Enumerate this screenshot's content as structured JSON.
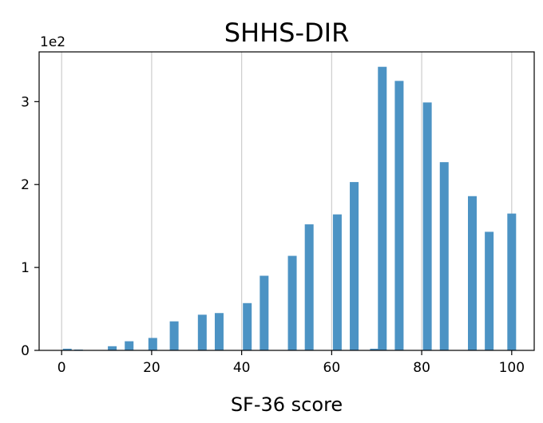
{
  "chart_data": {
    "type": "bar",
    "title": "SHHS-DIR",
    "xlabel": "SF-36 score",
    "ylabel": "",
    "y_offset_label": "1e2",
    "x": [
      1.25,
      3.75,
      11.25,
      15,
      20.25,
      25,
      31.25,
      35,
      41.25,
      45,
      51.25,
      55,
      61.25,
      65,
      69.5,
      71.25,
      75,
      81.25,
      85,
      91.25,
      95,
      100
    ],
    "values": [
      2,
      1,
      5,
      11,
      15,
      35,
      43,
      45,
      57,
      90,
      114,
      152,
      164,
      203,
      2,
      342,
      325,
      299,
      227,
      186,
      143,
      165
    ],
    "xlim": [
      -5,
      105
    ],
    "ylim": [
      0,
      360
    ],
    "xticks": [
      0,
      20,
      40,
      60,
      80,
      100
    ],
    "xtick_labels": [
      "0",
      "20",
      "40",
      "60",
      "80",
      "100"
    ],
    "yticks": [
      0,
      100,
      200,
      300
    ],
    "ytick_labels": [
      "0",
      "1",
      "2",
      "3"
    ],
    "grid": "vertical",
    "bar_color": "#4c93c4",
    "grid_color": "#cccccc"
  }
}
